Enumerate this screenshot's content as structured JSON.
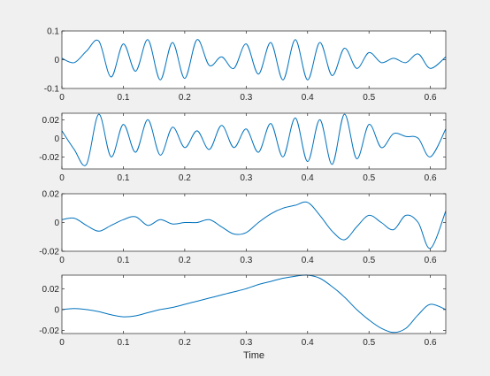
{
  "colors": {
    "figure_background": "#f0f0f0",
    "axes_background": "#ffffff",
    "axes_line": "#262626",
    "series_color": "#0072bd"
  },
  "chart_data": [
    {
      "type": "line",
      "xlim": [
        0,
        0.625
      ],
      "ylim": [
        -0.1,
        0.1
      ],
      "xticks": [
        0,
        0.1,
        0.2,
        0.3,
        0.4,
        0.5,
        0.6
      ],
      "xtick_labels": [
        "0",
        "0.1",
        "0.2",
        "0.3",
        "0.4",
        "0.5",
        "0.6"
      ],
      "yticks": [
        -0.1,
        0,
        0.1
      ],
      "ytick_labels": [
        "-0.1",
        "0",
        "0.1"
      ],
      "xlabel": "",
      "grid": false,
      "series": [
        {
          "color": "#0072bd",
          "x": [
            0,
            0.02,
            0.04,
            0.06,
            0.08,
            0.1,
            0.12,
            0.14,
            0.16,
            0.18,
            0.2,
            0.22,
            0.24,
            0.26,
            0.28,
            0.3,
            0.32,
            0.34,
            0.36,
            0.38,
            0.4,
            0.42,
            0.44,
            0.46,
            0.48,
            0.5,
            0.52,
            0.54,
            0.56,
            0.58,
            0.6,
            0.625
          ],
          "y": [
            0.005,
            -0.01,
            0.03,
            0.065,
            -0.06,
            0.055,
            -0.04,
            0.07,
            -0.07,
            0.06,
            -0.065,
            0.07,
            -0.02,
            0.01,
            -0.03,
            0.055,
            -0.05,
            0.06,
            -0.07,
            0.07,
            -0.07,
            0.06,
            -0.055,
            0.04,
            -0.03,
            0.025,
            -0.01,
            0.005,
            -0.01,
            0.02,
            -0.03,
            0.01
          ]
        }
      ]
    },
    {
      "type": "line",
      "xlim": [
        0,
        0.625
      ],
      "ylim": [
        -0.033,
        0.027
      ],
      "xticks": [
        0,
        0.1,
        0.2,
        0.3,
        0.4,
        0.5,
        0.6
      ],
      "xtick_labels": [
        "0",
        "0.1",
        "0.2",
        "0.3",
        "0.4",
        "0.5",
        "0.6"
      ],
      "yticks": [
        -0.02,
        0,
        0.02
      ],
      "ytick_labels": [
        "-0.02",
        "0",
        "0.02"
      ],
      "xlabel": "",
      "grid": false,
      "series": [
        {
          "color": "#0072bd",
          "x": [
            0,
            0.02,
            0.04,
            0.06,
            0.08,
            0.1,
            0.12,
            0.14,
            0.16,
            0.18,
            0.2,
            0.22,
            0.24,
            0.26,
            0.28,
            0.3,
            0.32,
            0.34,
            0.36,
            0.38,
            0.4,
            0.42,
            0.44,
            0.46,
            0.48,
            0.5,
            0.52,
            0.54,
            0.56,
            0.58,
            0.6,
            0.625
          ],
          "y": [
            0.008,
            -0.012,
            -0.028,
            0.026,
            -0.02,
            0.015,
            -0.015,
            0.02,
            -0.018,
            0.012,
            -0.01,
            0.008,
            -0.012,
            0.014,
            -0.01,
            0.01,
            -0.015,
            0.016,
            -0.02,
            0.022,
            -0.025,
            0.02,
            -0.028,
            0.026,
            -0.022,
            0.015,
            -0.01,
            0.005,
            0.002,
            0.0,
            -0.02,
            0.01
          ]
        }
      ]
    },
    {
      "type": "line",
      "xlim": [
        0,
        0.625
      ],
      "ylim": [
        -0.02,
        0.02
      ],
      "xticks": [
        0,
        0.1,
        0.2,
        0.3,
        0.4,
        0.5,
        0.6
      ],
      "xtick_labels": [
        "0",
        "0.1",
        "0.2",
        "0.3",
        "0.4",
        "0.5",
        "0.6"
      ],
      "yticks": [
        -0.02,
        0,
        0.02
      ],
      "ytick_labels": [
        "-0.02",
        "0",
        "0.02"
      ],
      "xlabel": "",
      "grid": false,
      "series": [
        {
          "color": "#0072bd",
          "x": [
            0,
            0.02,
            0.04,
            0.06,
            0.08,
            0.1,
            0.12,
            0.14,
            0.16,
            0.18,
            0.2,
            0.22,
            0.24,
            0.26,
            0.28,
            0.3,
            0.32,
            0.34,
            0.36,
            0.38,
            0.4,
            0.42,
            0.44,
            0.46,
            0.48,
            0.5,
            0.52,
            0.54,
            0.56,
            0.58,
            0.6,
            0.625
          ],
          "y": [
            0.002,
            0.003,
            -0.002,
            -0.006,
            -0.002,
            0.002,
            0.004,
            -0.002,
            0.002,
            -0.001,
            0.0,
            0.0,
            0.002,
            -0.003,
            -0.008,
            -0.007,
            0.0,
            0.006,
            0.01,
            0.012,
            0.014,
            0.005,
            -0.006,
            -0.012,
            -0.003,
            0.005,
            0.0,
            -0.005,
            0.005,
            0.0,
            -0.018,
            0.008
          ]
        }
      ]
    },
    {
      "type": "line",
      "xlim": [
        0,
        0.625
      ],
      "ylim": [
        -0.023,
        0.033
      ],
      "xticks": [
        0,
        0.1,
        0.2,
        0.3,
        0.4,
        0.5,
        0.6
      ],
      "xtick_labels": [
        "0",
        "0.1",
        "0.2",
        "0.3",
        "0.4",
        "0.5",
        "0.6"
      ],
      "yticks": [
        -0.02,
        0,
        0.02
      ],
      "ytick_labels": [
        "-0.02",
        "0",
        "0.02"
      ],
      "xlabel": "Time",
      "grid": false,
      "series": [
        {
          "color": "#0072bd",
          "x": [
            0,
            0.02,
            0.04,
            0.06,
            0.08,
            0.1,
            0.12,
            0.14,
            0.16,
            0.18,
            0.2,
            0.22,
            0.24,
            0.26,
            0.28,
            0.3,
            0.32,
            0.34,
            0.36,
            0.38,
            0.4,
            0.42,
            0.44,
            0.46,
            0.48,
            0.5,
            0.52,
            0.54,
            0.56,
            0.58,
            0.6,
            0.625
          ],
          "y": [
            0.0,
            0.001,
            0.0,
            -0.002,
            -0.005,
            -0.007,
            -0.006,
            -0.003,
            0.0,
            0.002,
            0.005,
            0.008,
            0.011,
            0.014,
            0.017,
            0.02,
            0.024,
            0.027,
            0.03,
            0.032,
            0.033,
            0.03,
            0.022,
            0.012,
            0.0,
            -0.01,
            -0.018,
            -0.022,
            -0.018,
            -0.005,
            0.005,
            0.0
          ]
        }
      ]
    }
  ]
}
